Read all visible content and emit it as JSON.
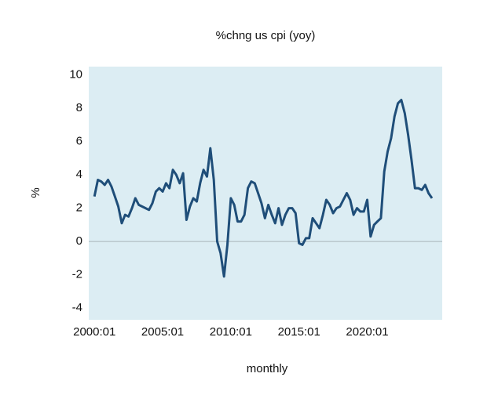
{
  "chart_data": {
    "type": "line",
    "title": "%chng us cpi (yoy)",
    "x_label": "monthly",
    "y_label": "%",
    "x": [
      "2000:01",
      "2000:04",
      "2000:07",
      "2000:10",
      "2001:01",
      "2001:04",
      "2001:07",
      "2001:10",
      "2002:01",
      "2002:04",
      "2002:07",
      "2002:10",
      "2003:01",
      "2003:04",
      "2003:07",
      "2003:10",
      "2004:01",
      "2004:04",
      "2004:07",
      "2004:10",
      "2005:01",
      "2005:04",
      "2005:07",
      "2005:10",
      "2006:01",
      "2006:04",
      "2006:07",
      "2006:10",
      "2007:01",
      "2007:04",
      "2007:07",
      "2007:10",
      "2008:01",
      "2008:04",
      "2008:07",
      "2008:10",
      "2009:01",
      "2009:04",
      "2009:07",
      "2009:10",
      "2010:01",
      "2010:04",
      "2010:07",
      "2010:10",
      "2011:01",
      "2011:04",
      "2011:07",
      "2011:10",
      "2012:01",
      "2012:04",
      "2012:07",
      "2012:10",
      "2013:01",
      "2013:04",
      "2013:07",
      "2013:10",
      "2014:01",
      "2014:04",
      "2014:07",
      "2014:10",
      "2015:01",
      "2015:04",
      "2015:07",
      "2015:10",
      "2016:01",
      "2016:04",
      "2016:07",
      "2016:10",
      "2017:01",
      "2017:04",
      "2017:07",
      "2017:10",
      "2018:01",
      "2018:04",
      "2018:07",
      "2018:10",
      "2019:01",
      "2019:04",
      "2019:07",
      "2019:10",
      "2020:01",
      "2020:04",
      "2020:07",
      "2020:10",
      "2021:01",
      "2021:04",
      "2021:07",
      "2021:10",
      "2022:01",
      "2022:04",
      "2022:07",
      "2022:10",
      "2023:01",
      "2023:04",
      "2023:07",
      "2023:10",
      "2024:01",
      "2024:04",
      "2024:07",
      "2024:10"
    ],
    "series": [
      {
        "name": "%chng us cpi (yoy)",
        "color": "#1f4e79",
        "values": [
          2.7,
          3.7,
          3.6,
          3.4,
          3.7,
          3.3,
          2.7,
          2.1,
          1.1,
          1.6,
          1.5,
          2.0,
          2.6,
          2.2,
          2.1,
          2.0,
          1.9,
          2.3,
          3.0,
          3.2,
          3.0,
          3.5,
          3.2,
          4.3,
          4.0,
          3.5,
          4.1,
          1.3,
          2.1,
          2.6,
          2.4,
          3.5,
          4.3,
          3.9,
          5.6,
          3.7,
          0.0,
          -0.7,
          -2.1,
          -0.2,
          2.6,
          2.2,
          1.2,
          1.2,
          1.6,
          3.2,
          3.6,
          3.5,
          2.9,
          2.3,
          1.4,
          2.2,
          1.6,
          1.1,
          2.0,
          1.0,
          1.6,
          2.0,
          2.0,
          1.7,
          -0.1,
          -0.2,
          0.2,
          0.2,
          1.4,
          1.1,
          0.8,
          1.6,
          2.5,
          2.2,
          1.7,
          2.0,
          2.1,
          2.5,
          2.9,
          2.5,
          1.6,
          2.0,
          1.8,
          1.8,
          2.5,
          0.3,
          1.0,
          1.2,
          1.4,
          4.2,
          5.4,
          6.2,
          7.5,
          8.3,
          8.5,
          7.7,
          6.4,
          4.9,
          3.2,
          3.2,
          3.1,
          3.4,
          2.9,
          2.6
        ]
      }
    ],
    "xlim": [
      "1999:08",
      "2025:07"
    ],
    "xticks": [
      "2000:01",
      "2005:01",
      "2010:01",
      "2015:01",
      "2020:01"
    ],
    "ylim": [
      -4.7,
      10.5
    ],
    "yticks": [
      -4,
      -2,
      0,
      2,
      4,
      6,
      8,
      10
    ],
    "plot_background": "#dcedf3"
  }
}
